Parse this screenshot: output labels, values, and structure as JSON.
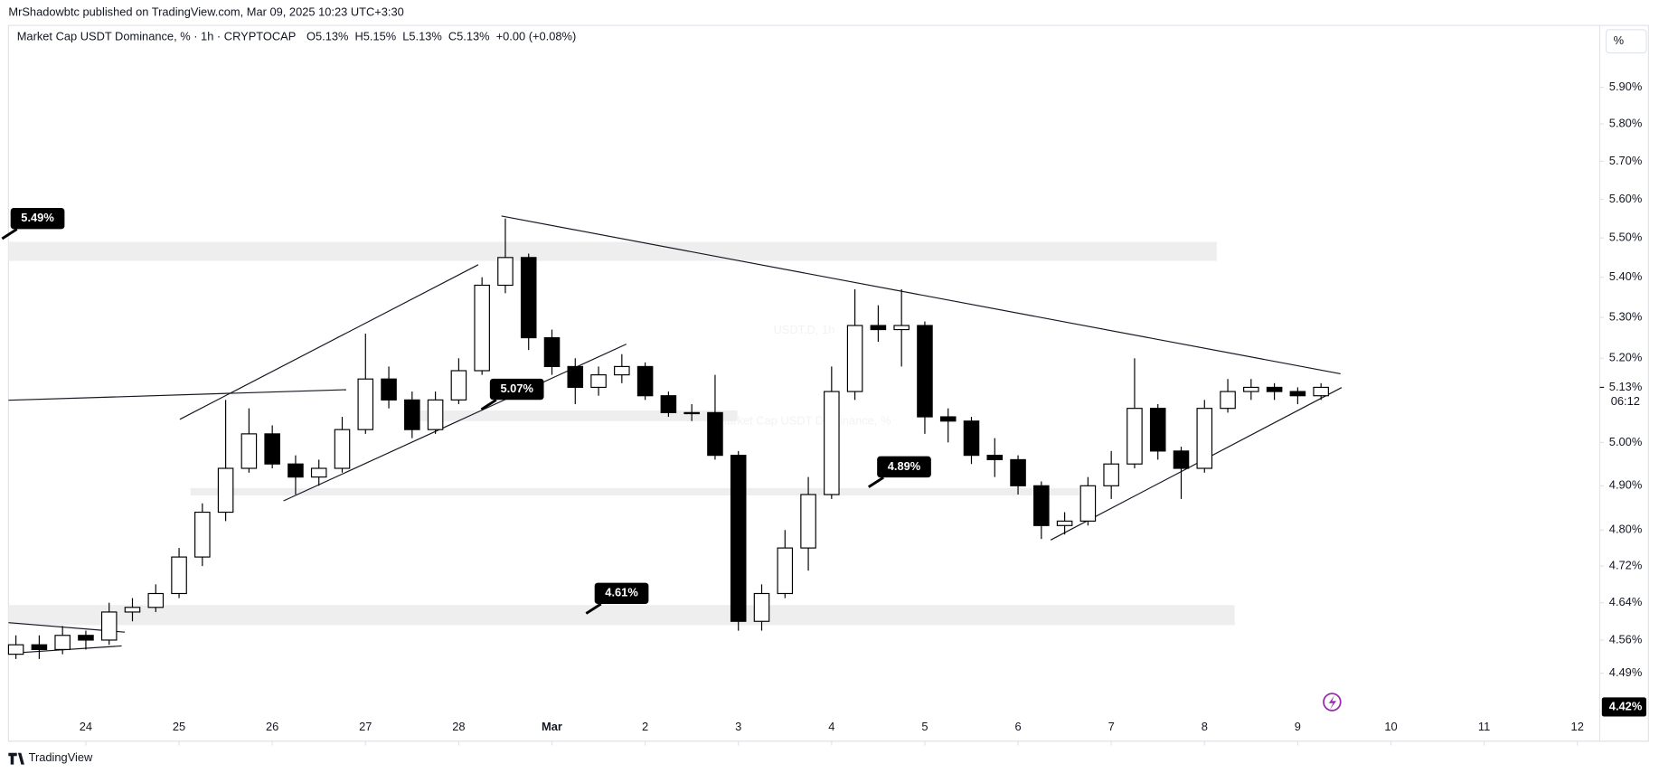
{
  "header": {
    "publisher": "MrShadowbtc published on TradingView.com, Mar 09, 2025 10:23 UTC+3:30",
    "symbol": "Market Cap USDT Dominance, % · 1h · CRYPTOCAP",
    "ohlc": [
      "O5.13%",
      "H5.15%",
      "L5.13%",
      "C5.13%",
      "+0.00 (+0.08%)"
    ]
  },
  "watermark": [
    "USDT.D, 1h",
    "Market Cap USDT Dominance, %"
  ],
  "footer": "TradingView",
  "chart_data": {
    "type": "candlestick",
    "axis_unit": "%",
    "log_scale": true,
    "up_color": "#ffffff",
    "down_color": "#000000",
    "border_color": "#000000",
    "x": [
      -0.75,
      -0.5,
      -0.25,
      0,
      0.25,
      0.5,
      0.75,
      1,
      1.25,
      1.5,
      1.75,
      2,
      2.25,
      2.5,
      2.75,
      3,
      3.25,
      3.5,
      3.75,
      4,
      4.25,
      4.5,
      4.75,
      5,
      5.25,
      5.5,
      5.75,
      6,
      6.25,
      6.5,
      6.75,
      7,
      7.25,
      7.5,
      7.75,
      8,
      8.25,
      8.5,
      8.75,
      9,
      9.25,
      9.5,
      9.75,
      10,
      10.25,
      10.5,
      10.75,
      11,
      11.25,
      11.5,
      11.75,
      12,
      12.25,
      12.5,
      12.75,
      13,
      13.25
    ],
    "open": [
      4.53,
      4.55,
      4.54,
      4.57,
      4.56,
      4.62,
      4.63,
      4.66,
      4.74,
      4.84,
      4.94,
      5.02,
      4.95,
      4.92,
      4.94,
      5.03,
      5.15,
      5.1,
      5.03,
      5.1,
      5.17,
      5.38,
      5.45,
      5.25,
      5.18,
      5.13,
      5.16,
      5.18,
      5.11,
      5.07,
      5.07,
      4.97,
      4.6,
      4.66,
      4.76,
      4.88,
      5.12,
      5.28,
      5.27,
      5.28,
      5.06,
      5.05,
      4.97,
      4.96,
      4.9,
      4.81,
      4.82,
      4.9,
      4.95,
      5.08,
      4.98,
      4.94,
      5.08,
      5.12,
      5.13,
      5.12,
      5.11
    ],
    "high": [
      4.57,
      4.57,
      4.59,
      4.58,
      4.64,
      4.65,
      4.68,
      4.76,
      4.86,
      5.1,
      5.08,
      5.04,
      4.97,
      4.96,
      5.06,
      5.26,
      5.18,
      5.12,
      5.12,
      5.2,
      5.4,
      5.55,
      5.46,
      5.27,
      5.2,
      5.18,
      5.21,
      5.19,
      5.12,
      5.09,
      5.16,
      4.98,
      4.68,
      4.8,
      4.92,
      5.18,
      5.37,
      5.33,
      5.37,
      5.29,
      5.08,
      5.06,
      5.01,
      4.97,
      4.91,
      4.84,
      4.92,
      4.98,
      5.2,
      5.09,
      4.99,
      5.1,
      5.15,
      5.15,
      5.14,
      5.13,
      5.14
    ],
    "low": [
      4.52,
      4.52,
      4.53,
      4.54,
      4.55,
      4.6,
      4.62,
      4.65,
      4.72,
      4.82,
      4.93,
      4.94,
      4.88,
      4.9,
      4.93,
      5.02,
      5.08,
      5.01,
      5.02,
      5.09,
      5.16,
      5.36,
      5.22,
      5.16,
      5.09,
      5.11,
      5.14,
      5.1,
      5.06,
      5.05,
      4.96,
      4.58,
      4.58,
      4.65,
      4.71,
      4.87,
      5.1,
      5.24,
      5.18,
      5.02,
      5.0,
      4.95,
      4.92,
      4.88,
      4.78,
      4.79,
      4.81,
      4.87,
      4.94,
      4.96,
      4.87,
      4.93,
      5.07,
      5.1,
      5.1,
      5.09,
      5.1
    ],
    "close": [
      4.55,
      4.54,
      4.57,
      4.56,
      4.62,
      4.63,
      4.66,
      4.74,
      4.84,
      4.94,
      5.02,
      4.95,
      4.92,
      4.94,
      5.03,
      5.15,
      5.1,
      5.03,
      5.1,
      5.17,
      5.38,
      5.45,
      5.25,
      5.18,
      5.13,
      5.16,
      5.18,
      5.11,
      5.07,
      5.07,
      4.97,
      4.6,
      4.66,
      4.76,
      4.88,
      5.12,
      5.28,
      5.27,
      5.28,
      5.06,
      5.05,
      4.97,
      4.96,
      4.9,
      4.81,
      4.82,
      4.9,
      4.95,
      5.08,
      4.98,
      4.94,
      5.08,
      5.12,
      5.13,
      5.12,
      5.11,
      5.13
    ],
    "xlim": [
      -0.83,
      16.24
    ],
    "xticks": [
      {
        "value": 0,
        "label": "24"
      },
      {
        "value": 1,
        "label": "25"
      },
      {
        "value": 2,
        "label": "26"
      },
      {
        "value": 3,
        "label": "27"
      },
      {
        "value": 4,
        "label": "28"
      },
      {
        "value": 5,
        "label": "Mar"
      },
      {
        "value": 6,
        "label": "2"
      },
      {
        "value": 7,
        "label": "3"
      },
      {
        "value": 8,
        "label": "4"
      },
      {
        "value": 9,
        "label": "5"
      },
      {
        "value": 10,
        "label": "6"
      },
      {
        "value": 11,
        "label": "7"
      },
      {
        "value": 12,
        "label": "8"
      },
      {
        "value": 13,
        "label": "9"
      },
      {
        "value": 14,
        "label": "10"
      },
      {
        "value": 15,
        "label": "11"
      },
      {
        "value": 16,
        "label": "12"
      }
    ],
    "ylim": [
      4.35,
      6.01
    ],
    "yticks": [
      {
        "value": 4.49,
        "label": "4.49%"
      },
      {
        "value": 4.56,
        "label": "4.56%"
      },
      {
        "value": 4.64,
        "label": "4.64%"
      },
      {
        "value": 4.72,
        "label": "4.72%"
      },
      {
        "value": 4.8,
        "label": "4.80%"
      },
      {
        "value": 4.9,
        "label": "4.90%"
      },
      {
        "value": 5,
        "label": "5.00%"
      },
      {
        "value": 5.2,
        "label": "5.20%"
      },
      {
        "value": 5.3,
        "label": "5.30%"
      },
      {
        "value": 5.4,
        "label": "5.40%"
      },
      {
        "value": 5.5,
        "label": "5.50%"
      },
      {
        "value": 5.6,
        "label": "5.60%"
      },
      {
        "value": 5.7,
        "label": "5.70%"
      },
      {
        "value": 5.8,
        "label": "5.80%"
      },
      {
        "value": 5.9,
        "label": "5.90%"
      }
    ],
    "annotations": [
      {
        "value": 5.49,
        "label": "5.49%"
      },
      {
        "value": 5.07,
        "label": "5.07%"
      },
      {
        "value": 4.89,
        "label": "4.89%"
      },
      {
        "value": 4.61,
        "label": "4.61%"
      }
    ],
    "price_labels": [
      {
        "value": 5.13,
        "label": "5.13%",
        "countdown": "06:12"
      },
      {
        "value": 4.42,
        "label": "4.42%"
      }
    ]
  }
}
